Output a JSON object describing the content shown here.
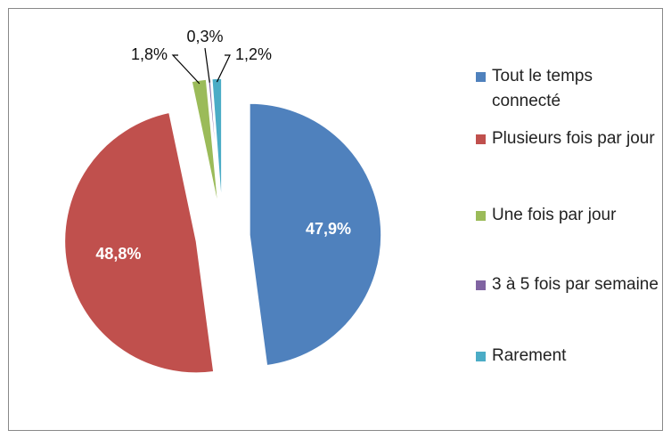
{
  "chart_data": {
    "type": "pie",
    "categories": [
      "Tout le temps connecté",
      "Plusieurs fois par jour",
      "Une fois par jour",
      "3 à 5 fois par semaine",
      "Rarement"
    ],
    "values": [
      47.9,
      48.8,
      1.8,
      0.3,
      1.2
    ],
    "value_labels": [
      "47,9%",
      "48,8%",
      "1,8%",
      "0,3%",
      "1,2%"
    ],
    "colors": [
      "#4f81bd",
      "#c0504d",
      "#9bbb59",
      "#8064a2",
      "#4bacc6"
    ],
    "legend": "right"
  }
}
